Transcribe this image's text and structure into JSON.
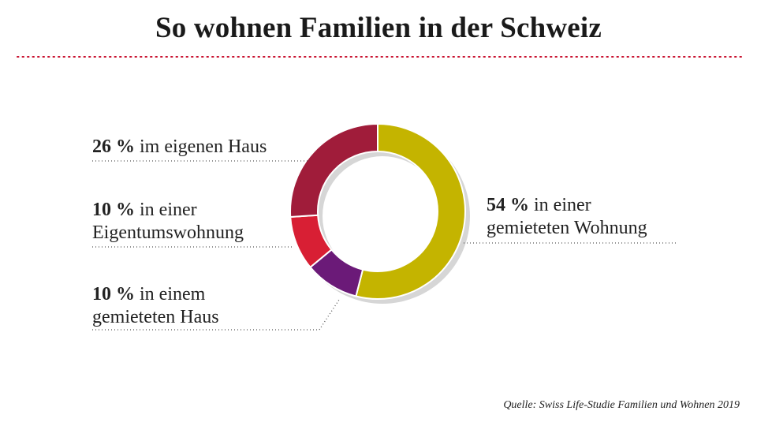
{
  "title": "So wohnen Familien in der Schweiz",
  "source": "Quelle: Swiss Life-Studie Familien und Wohnen 2019",
  "chart_data": {
    "type": "pie",
    "variant": "donut",
    "title": "So wohnen Familien in der Schweiz",
    "unit": "%",
    "slices": [
      {
        "pct_label": "54 %",
        "label_line1": "in einer",
        "label_line2": "gemieteten Wohnung",
        "value": 54,
        "color": "#c4b400"
      },
      {
        "pct_label": "10 %",
        "label_line1": "in einem",
        "label_line2": "gemieteten Haus",
        "value": 10,
        "color": "#6b1a78"
      },
      {
        "pct_label": "10 %",
        "label_line1": "in einer",
        "label_line2": "Eigentumswohnung",
        "value": 10,
        "color": "#d81f34"
      },
      {
        "pct_label": "26 %",
        "label_line1": "im eigenen Haus",
        "label_line2": "",
        "value": 26,
        "color": "#a01c3a"
      }
    ],
    "accent_color": "#c8102e"
  }
}
